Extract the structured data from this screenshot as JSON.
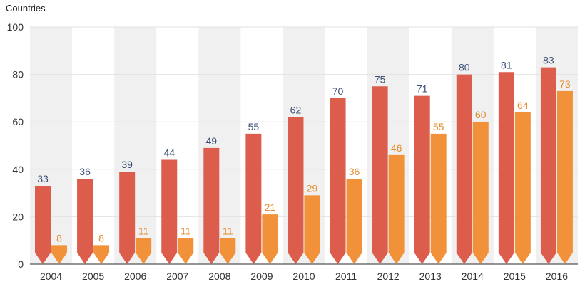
{
  "chart_data": {
    "type": "bar",
    "ylabel": "Countries",
    "xlabel": "",
    "ylim": [
      0,
      100
    ],
    "yticks": [
      0,
      20,
      40,
      60,
      80,
      100
    ],
    "categories": [
      "2004",
      "2005",
      "2006",
      "2007",
      "2008",
      "2009",
      "2010",
      "2011",
      "2012",
      "2013",
      "2014",
      "2015",
      "2016"
    ],
    "series": [
      {
        "color": "#dc5d4c",
        "label_color": "#3b4f74",
        "values": [
          33,
          36,
          39,
          44,
          49,
          55,
          62,
          70,
          75,
          71,
          80,
          81,
          83
        ]
      },
      {
        "color": "#f1913a",
        "label_color": "#e58a2a",
        "values": [
          8,
          8,
          11,
          11,
          11,
          21,
          29,
          36,
          46,
          55,
          60,
          64,
          73
        ]
      }
    ],
    "grid": true,
    "band_color": "#f0f0f0"
  }
}
